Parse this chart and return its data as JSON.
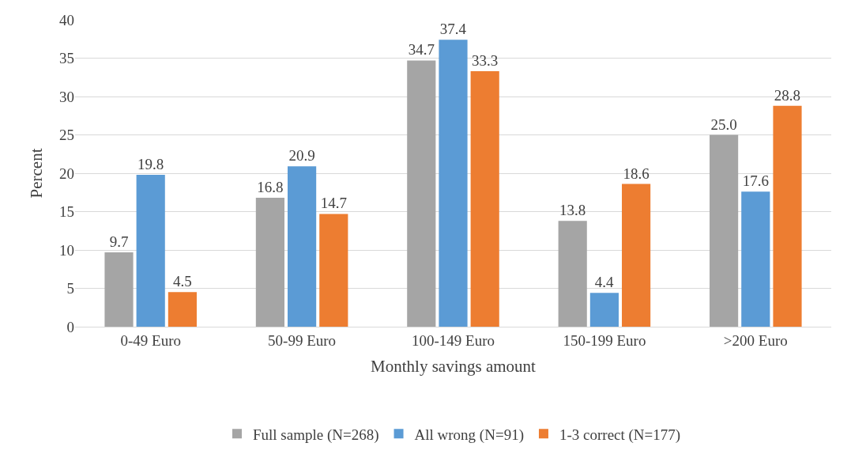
{
  "chart_data": {
    "type": "bar",
    "xlabel": "Monthly savings amount",
    "ylabel": "Percent",
    "categories": [
      "0-49 Euro",
      "50-99 Euro",
      "100-149 Euro",
      "150-199 Euro",
      ">200 Euro"
    ],
    "series": [
      {
        "name": "Full sample (N=268)",
        "color": "#a5a5a5",
        "values": [
          9.7,
          16.8,
          34.7,
          13.8,
          25.0
        ]
      },
      {
        "name": "All wrong (N=91)",
        "color": "#5b9bd5",
        "values": [
          19.8,
          20.9,
          37.4,
          4.4,
          17.6
        ]
      },
      {
        "name": "1-3 correct (N=177)",
        "color": "#ed7d31",
        "values": [
          4.5,
          14.7,
          33.3,
          18.6,
          28.8
        ]
      }
    ],
    "value_labels": [
      [
        "9.7",
        "16.8",
        "34.7",
        "13.8",
        "25.0"
      ],
      [
        "19.8",
        "20.9",
        "37.4",
        "4.4",
        "17.6"
      ],
      [
        "4.5",
        "14.7",
        "33.3",
        "18.6",
        "28.8"
      ]
    ],
    "ylim": [
      0,
      40
    ],
    "yticks": [
      0,
      5,
      10,
      15,
      20,
      25,
      30,
      35,
      40
    ],
    "grid": "y",
    "legend": "bottom"
  }
}
